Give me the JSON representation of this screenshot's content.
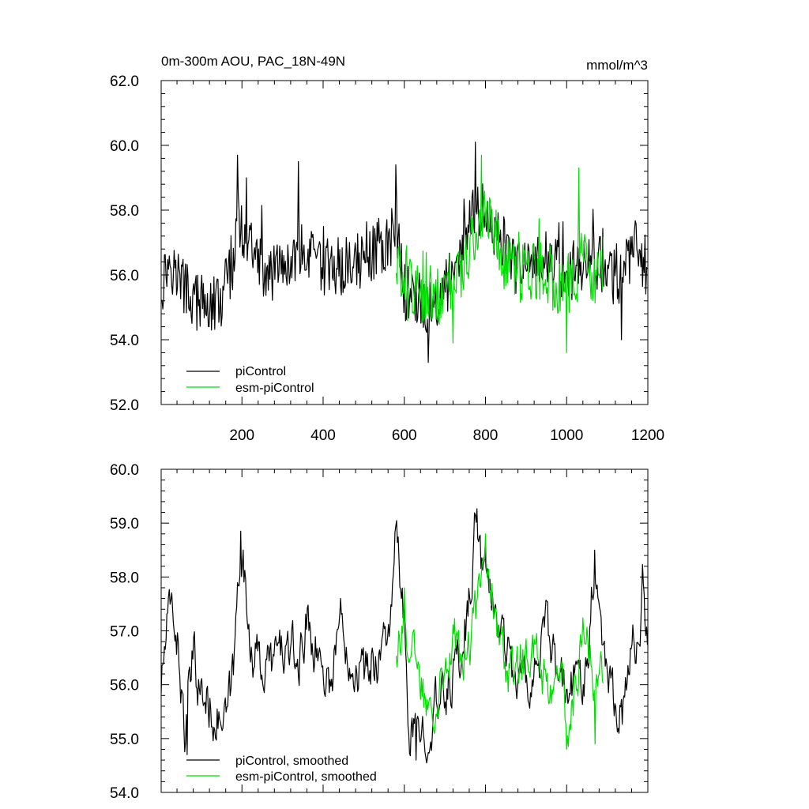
{
  "chart_data": [
    {
      "type": "line",
      "title": "0m-300m AOU, PAC_18N-49N",
      "units": "mmol/m^3",
      "xlabel": "",
      "ylabel": "",
      "xlim": [
        1,
        1200
      ],
      "ylim": [
        52.0,
        62.0
      ],
      "xticks": [
        200,
        400,
        600,
        800,
        1000,
        1200
      ],
      "yticks": [
        "52.0",
        "54.0",
        "56.0",
        "58.0",
        "60.0",
        "62.0"
      ],
      "legend_position": "bottom-left",
      "series": [
        {
          "name": "piControl",
          "color": "#000000",
          "x_start": 1,
          "x_end": 1200,
          "baseline": 56.0,
          "anchors": [
            [
              1,
              55.6
            ],
            [
              20,
              56.5
            ],
            [
              50,
              55.8
            ],
            [
              80,
              55.2
            ],
            [
              120,
              55.0
            ],
            [
              150,
              55.2
            ],
            [
              180,
              56.5
            ],
            [
              190,
              57.8
            ],
            [
              210,
              57.0
            ],
            [
              250,
              56.2
            ],
            [
              300,
              56.0
            ],
            [
              350,
              56.8
            ],
            [
              400,
              56.1
            ],
            [
              450,
              56.3
            ],
            [
              500,
              56.5
            ],
            [
              560,
              57.0
            ],
            [
              580,
              57.5
            ],
            [
              600,
              55.5
            ],
            [
              620,
              55.3
            ],
            [
              660,
              55.0
            ],
            [
              700,
              55.5
            ],
            [
              740,
              56.5
            ],
            [
              770,
              57.8
            ],
            [
              790,
              58.0
            ],
            [
              820,
              57.5
            ],
            [
              850,
              56.8
            ],
            [
              880,
              56.1
            ],
            [
              920,
              56.3
            ],
            [
              950,
              56.6
            ],
            [
              1000,
              56.0
            ],
            [
              1050,
              56.5
            ],
            [
              1100,
              56.3
            ],
            [
              1130,
              56.0
            ],
            [
              1170,
              56.8
            ],
            [
              1200,
              56.2
            ]
          ],
          "noise": 0.9,
          "spikes": [
            [
              775,
              60.1
            ],
            [
              190,
              59.7
            ],
            [
              340,
              59.5
            ],
            [
              660,
              53.3
            ],
            [
              1135,
              54.0
            ],
            [
              580,
              59.4
            ]
          ]
        },
        {
          "name": "esm-piControl",
          "color": "#00dd00",
          "x_start": 580,
          "x_end": 1090,
          "baseline": 56.0,
          "anchors": [
            [
              580,
              56.5
            ],
            [
              600,
              56.0
            ],
            [
              640,
              55.5
            ],
            [
              680,
              55.3
            ],
            [
              720,
              55.8
            ],
            [
              760,
              56.8
            ],
            [
              790,
              58.0
            ],
            [
              820,
              57.2
            ],
            [
              860,
              56.2
            ],
            [
              900,
              56.0
            ],
            [
              940,
              56.2
            ],
            [
              980,
              55.6
            ],
            [
              1020,
              55.8
            ],
            [
              1050,
              56.8
            ],
            [
              1070,
              55.5
            ],
            [
              1090,
              56.6
            ]
          ],
          "noise": 1.0,
          "spikes": [
            [
              790,
              59.7
            ],
            [
              1030,
              59.3
            ],
            [
              1000,
              53.6
            ],
            [
              720,
              53.9
            ]
          ]
        }
      ]
    },
    {
      "type": "line",
      "title": "",
      "xlabel": "",
      "ylabel": "",
      "xlim": [
        1,
        1200
      ],
      "ylim": [
        54.0,
        60.0
      ],
      "yticks": [
        "54.0",
        "55.0",
        "56.0",
        "57.0",
        "58.0",
        "59.0",
        "60.0"
      ],
      "legend_position": "bottom-left",
      "series": [
        {
          "name": "piControl, smoothed",
          "color": "#000000",
          "x_start": 1,
          "x_end": 1200,
          "baseline": 56.0,
          "anchors": [
            [
              1,
              56.0
            ],
            [
              15,
              57.0
            ],
            [
              30,
              57.5
            ],
            [
              45,
              56.5
            ],
            [
              60,
              55.0
            ],
            [
              80,
              56.5
            ],
            [
              100,
              55.8
            ],
            [
              130,
              55.5
            ],
            [
              160,
              55.2
            ],
            [
              180,
              56.3
            ],
            [
              190,
              57.8
            ],
            [
              198,
              58.8
            ],
            [
              210,
              57.5
            ],
            [
              230,
              56.5
            ],
            [
              260,
              56.3
            ],
            [
              300,
              56.7
            ],
            [
              340,
              56.4
            ],
            [
              360,
              57.2
            ],
            [
              390,
              56.5
            ],
            [
              420,
              56.0
            ],
            [
              440,
              57.3
            ],
            [
              470,
              56.5
            ],
            [
              500,
              56.2
            ],
            [
              540,
              56.6
            ],
            [
              570,
              57.3
            ],
            [
              580,
              58.9
            ],
            [
              600,
              57.0
            ],
            [
              610,
              55.2
            ],
            [
              630,
              55.0
            ],
            [
              660,
              55.3
            ],
            [
              700,
              55.8
            ],
            [
              740,
              56.6
            ],
            [
              760,
              57.5
            ],
            [
              775,
              59.1
            ],
            [
              790,
              58.3
            ],
            [
              820,
              57.5
            ],
            [
              840,
              57.0
            ],
            [
              860,
              56.5
            ],
            [
              880,
              56.0
            ],
            [
              920,
              56.2
            ],
            [
              950,
              57.0
            ],
            [
              970,
              56.3
            ],
            [
              1000,
              55.8
            ],
            [
              1050,
              56.4
            ],
            [
              1070,
              58.4
            ],
            [
              1090,
              56.8
            ],
            [
              1110,
              56.0
            ],
            [
              1140,
              55.5
            ],
            [
              1160,
              56.6
            ],
            [
              1180,
              57.0
            ],
            [
              1190,
              58.1
            ],
            [
              1200,
              56.4
            ]
          ],
          "noise": 0.55,
          "spikes": [
            [
              775,
              59.15
            ],
            [
              580,
              58.95
            ],
            [
              198,
              58.85
            ],
            [
              630,
              54.6
            ],
            [
              65,
              54.7
            ],
            [
              1070,
              58.5
            ]
          ]
        },
        {
          "name": "esm-piControl, smoothed",
          "color": "#00dd00",
          "x_start": 580,
          "x_end": 1090,
          "baseline": 56.0,
          "anchors": [
            [
              580,
              56.7
            ],
            [
              600,
              57.3
            ],
            [
              620,
              56.5
            ],
            [
              650,
              55.8
            ],
            [
              680,
              55.8
            ],
            [
              700,
              56.5
            ],
            [
              720,
              56.8
            ],
            [
              740,
              56.5
            ],
            [
              760,
              56.6
            ],
            [
              780,
              57.5
            ],
            [
              790,
              58.6
            ],
            [
              810,
              58.0
            ],
            [
              830,
              57.2
            ],
            [
              850,
              56.2
            ],
            [
              880,
              56.4
            ],
            [
              910,
              56.6
            ],
            [
              940,
              56.2
            ],
            [
              960,
              55.8
            ],
            [
              990,
              56.0
            ],
            [
              1000,
              55.0
            ],
            [
              1020,
              56.0
            ],
            [
              1050,
              57.3
            ],
            [
              1070,
              55.8
            ],
            [
              1090,
              56.2
            ]
          ],
          "noise": 0.55,
          "spikes": [
            [
              800,
              58.8
            ],
            [
              1000,
              54.8
            ],
            [
              1070,
              54.9
            ],
            [
              600,
              57.8
            ]
          ]
        }
      ]
    }
  ]
}
